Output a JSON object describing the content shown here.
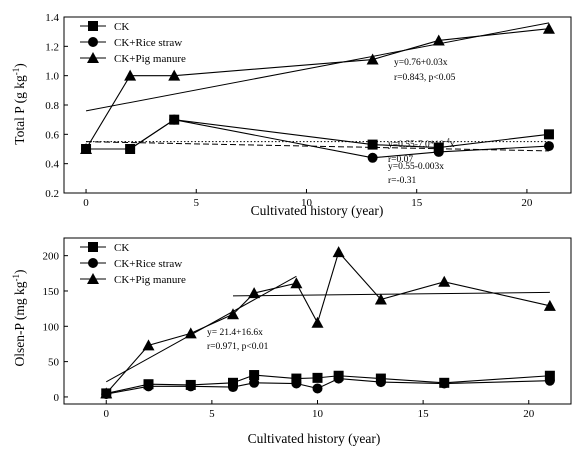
{
  "chart_data": [
    {
      "type": "line",
      "xlabel": "Cultivated history (year)",
      "ylabel_main": "Total P (g kg",
      "ylabel_sup": "-1",
      "ylabel_close": ")",
      "xlim": [
        -1,
        22
      ],
      "ylim": [
        0.2,
        1.4
      ],
      "xticks": [
        0,
        5,
        10,
        15,
        20
      ],
      "yticks": [
        0.2,
        0.4,
        0.6,
        0.8,
        1.0,
        1.2,
        1.4
      ],
      "ytick_labels": [
        "0.2",
        "0.4",
        "0.6",
        "0.8",
        "1.0",
        "1.2",
        "1.4"
      ],
      "legend_position": "top-left",
      "series": [
        {
          "name": "CK",
          "marker": "square",
          "x": [
            0,
            2,
            4,
            13,
            16,
            21
          ],
          "y": [
            0.5,
            0.5,
            0.7,
            0.53,
            0.51,
            0.6
          ]
        },
        {
          "name": "CK+Rice straw",
          "marker": "circle",
          "x": [
            0,
            2,
            4,
            13,
            16,
            21
          ],
          "y": [
            0.5,
            0.5,
            0.7,
            0.44,
            0.48,
            0.52
          ]
        },
        {
          "name": "CK+Pig manure",
          "marker": "triangle",
          "x": [
            0,
            2,
            4,
            13,
            16,
            21
          ],
          "y": [
            0.5,
            1.0,
            1.0,
            1.11,
            1.24,
            1.32
          ]
        }
      ],
      "fit_lines": [
        {
          "style": "solid",
          "x": [
            0,
            21
          ],
          "y": [
            0.76,
            1.36
          ]
        },
        {
          "style": "dotted",
          "x": [
            0,
            21
          ],
          "y": [
            0.55,
            0.55
          ]
        },
        {
          "style": "dashed",
          "x": [
            0,
            21
          ],
          "y": [
            0.55,
            0.487
          ]
        }
      ],
      "annotations": [
        {
          "lines": [
            "y=0.76+0.03x",
            "r=0.843, p<0.05"
          ]
        },
        {
          "lines": [
            "y=0.55-7.0*10",
            "r=0.07"
          ],
          "sup": "-4",
          "suffix": "x"
        },
        {
          "lines": [
            "y=0.55-0.003x",
            "r=-0.31"
          ]
        }
      ]
    },
    {
      "type": "line",
      "xlabel": "Cultivated history (year)",
      "ylabel_main": "Olsen-P (mg kg",
      "ylabel_sup": "-1",
      "ylabel_close": ")",
      "xlim": [
        -2,
        22
      ],
      "ylim": [
        -10,
        225
      ],
      "xticks": [
        0,
        5,
        10,
        15,
        20
      ],
      "yticks": [
        0,
        50,
        100,
        150,
        200
      ],
      "legend_position": "top-left",
      "series": [
        {
          "name": "CK",
          "marker": "square",
          "x": [
            0,
            2,
            4,
            6,
            7,
            9,
            10,
            11,
            13,
            16,
            21
          ],
          "y": [
            5,
            18,
            17,
            20,
            31,
            26,
            27,
            30,
            26,
            20,
            30
          ]
        },
        {
          "name": "CK+Rice straw",
          "marker": "circle",
          "x": [
            0,
            2,
            4,
            6,
            7,
            9,
            10,
            11,
            13,
            16,
            21
          ],
          "y": [
            4,
            15,
            15,
            14,
            20,
            19,
            12,
            26,
            21,
            19,
            23
          ]
        },
        {
          "name": "CK+Pig manure",
          "marker": "triangle",
          "x": [
            0,
            2,
            4,
            6,
            7,
            9,
            10,
            11,
            13,
            16,
            21
          ],
          "y": [
            5,
            73,
            90,
            117,
            147,
            161,
            105,
            205,
            138,
            163,
            129
          ]
        }
      ],
      "fit_lines": [
        {
          "style": "solid",
          "x": [
            0,
            9
          ],
          "y": [
            21.4,
            170.8
          ]
        },
        {
          "style": "solid",
          "x": [
            6,
            21
          ],
          "y": [
            143,
            148
          ]
        }
      ],
      "annotations": [
        {
          "lines": [
            "y= 21.4+16.6x",
            "r=0.971, p<0.01"
          ]
        }
      ]
    }
  ]
}
